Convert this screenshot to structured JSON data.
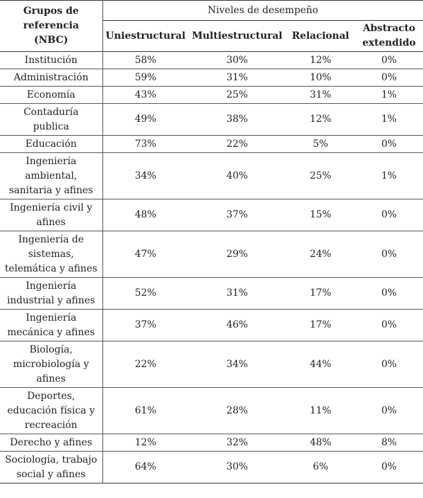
{
  "table": {
    "header": {
      "group_label": "Grupos de referencia (NBC)",
      "levels_title": "Niveles de desempeño",
      "levels": [
        "Uniestructural",
        "Multiestructural",
        "Relacional",
        "Abstracto extendido"
      ]
    },
    "rows": [
      {
        "group": "Institución",
        "values": [
          "58%",
          "30%",
          "12%",
          "0%"
        ]
      },
      {
        "group": "Administración",
        "values": [
          "59%",
          "31%",
          "10%",
          "0%"
        ]
      },
      {
        "group": "Economía",
        "values": [
          "43%",
          "25%",
          "31%",
          "1%"
        ]
      },
      {
        "group": "Contaduría publica",
        "values": [
          "49%",
          "38%",
          "12%",
          "1%"
        ]
      },
      {
        "group": "Educación",
        "values": [
          "73%",
          "22%",
          "5%",
          "0%"
        ]
      },
      {
        "group": "Ingeniería ambiental, sanitaria y afines",
        "values": [
          "34%",
          "40%",
          "25%",
          "1%"
        ]
      },
      {
        "group": "Ingeniería civil y afines",
        "values": [
          "48%",
          "37%",
          "15%",
          "0%"
        ]
      },
      {
        "group": "Ingeniería de sistemas, telemática y afines",
        "values": [
          "47%",
          "29%",
          "24%",
          "0%"
        ]
      },
      {
        "group": "Ingeniería industrial y afines",
        "values": [
          "52%",
          "31%",
          "17%",
          "0%"
        ]
      },
      {
        "group": "Ingeniería mecánica y afines",
        "values": [
          "37%",
          "46%",
          "17%",
          "0%"
        ]
      },
      {
        "group": "Biología, microbiología y afines",
        "values": [
          "22%",
          "34%",
          "44%",
          "0%"
        ]
      },
      {
        "group": "Deportes, educación física y recreación",
        "values": [
          "61%",
          "28%",
          "11%",
          "0%"
        ]
      },
      {
        "group": "Derecho y afines",
        "values": [
          "12%",
          "32%",
          "48%",
          "8%"
        ]
      },
      {
        "group": "Sociología, trabajo social y afines",
        "values": [
          "64%",
          "30%",
          "6%",
          "0%"
        ]
      }
    ]
  }
}
